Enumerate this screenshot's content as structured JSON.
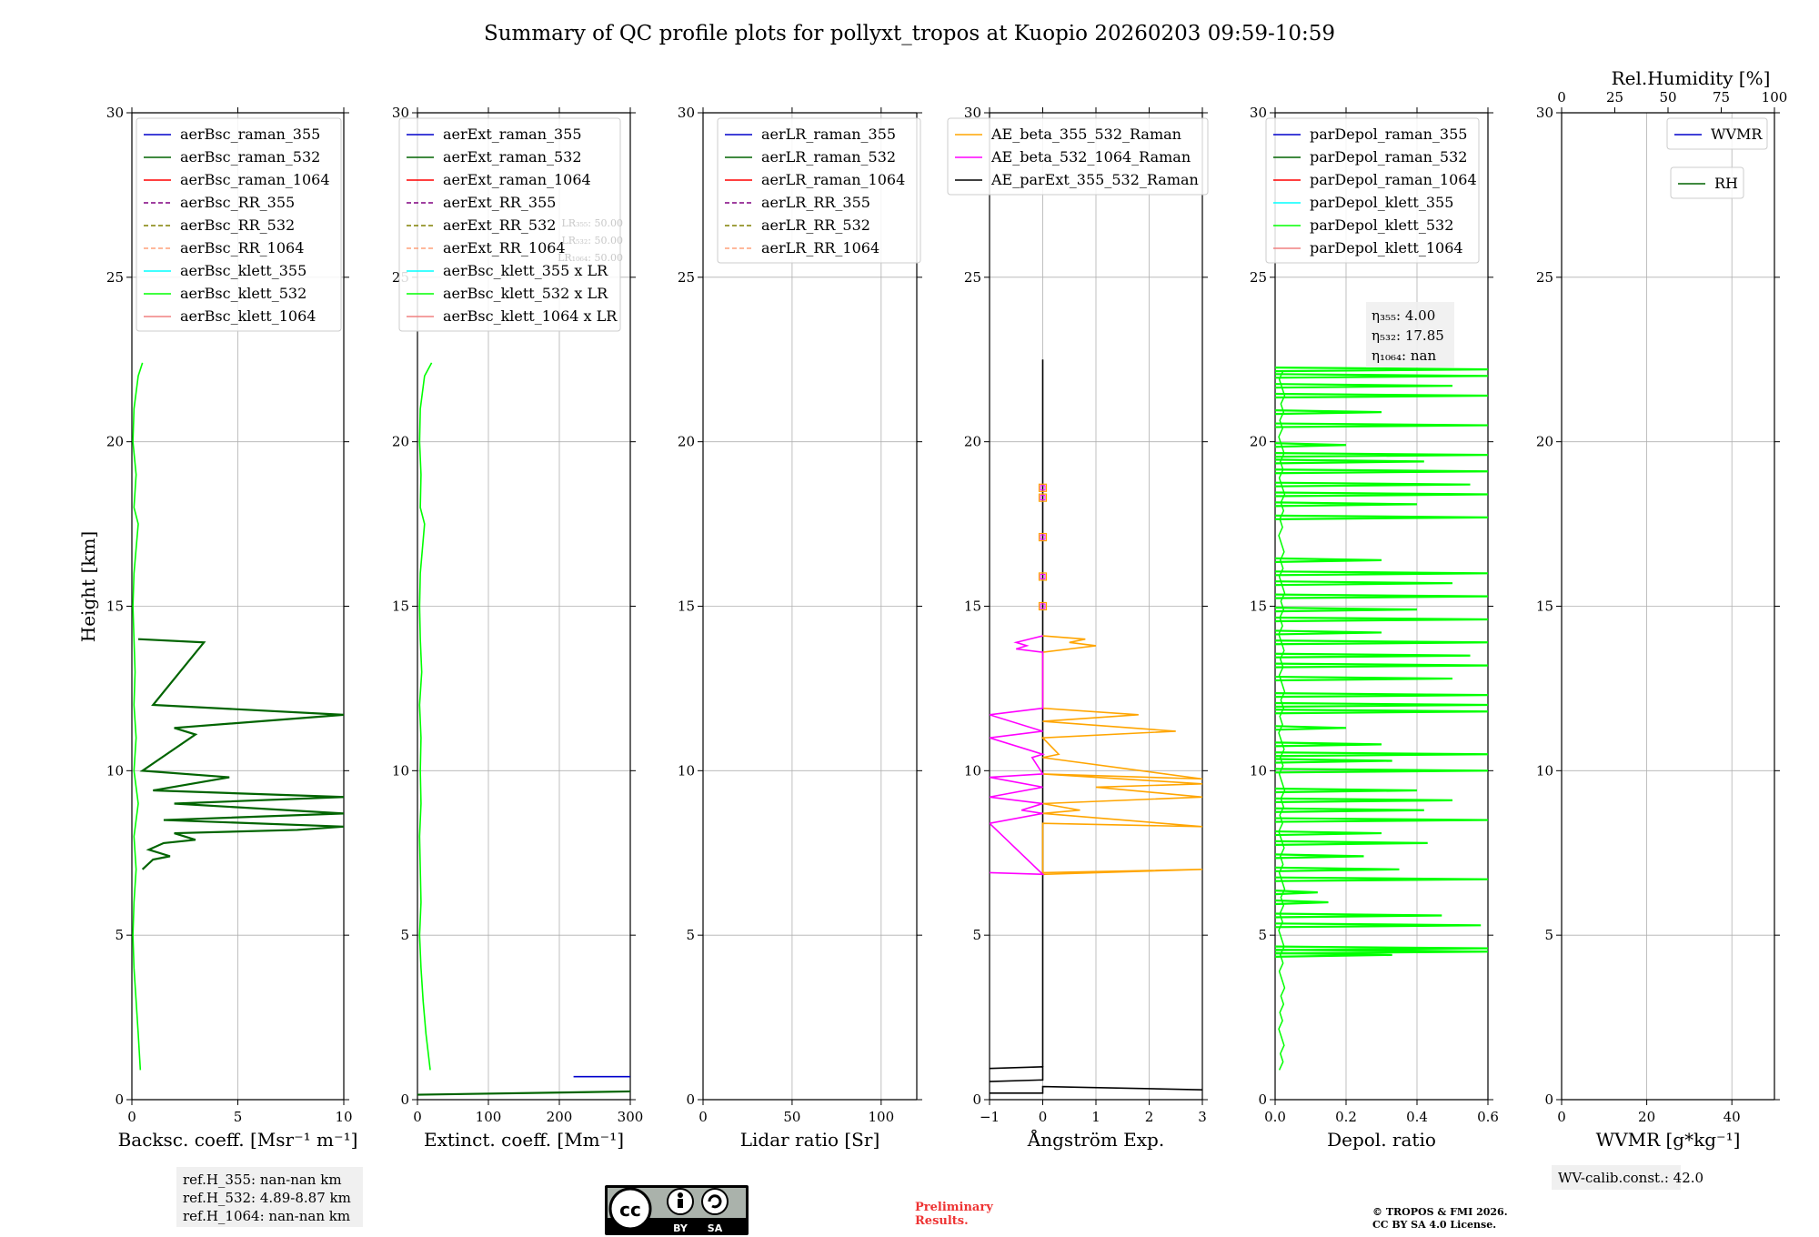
{
  "title": "Summary of QC profile plots for pollyxt_tropos at Kuopio 20260203 09:59-10:59",
  "y_label": "Height [km]",
  "colors": {
    "raman_355": "#0000cc",
    "raman_532": "#006400",
    "raman_1064": "#ff0000",
    "rr_355": "#800080",
    "rr_532": "#808000",
    "rr_1064": "#ffa07a",
    "klett_355": "#00ffff",
    "klett_532": "#00ff00",
    "klett_1064": "#f08080",
    "ae1": "#ffa500",
    "ae2": "#ff00ff",
    "ae3": "#000000",
    "grid": "#b0b0b0"
  },
  "chart_data": [
    {
      "type": "line",
      "id": "bsc",
      "xlabel": "Backsc. coeff. [Msr⁻¹ m⁻¹]",
      "xlim": [
        0,
        10
      ],
      "ylim": [
        0,
        30
      ],
      "xticks": [
        "0",
        "5",
        "10"
      ],
      "yticks": [
        "0",
        "5",
        "10",
        "15",
        "20",
        "25",
        "30"
      ],
      "legend": [
        "aerBsc_raman_355",
        "aerBsc_raman_532",
        "aerBsc_raman_1064",
        "aerBsc_RR_355",
        "aerBsc_RR_532",
        "aerBsc_RR_1064",
        "aerBsc_klett_355",
        "aerBsc_klett_532",
        "aerBsc_klett_1064"
      ],
      "series": [
        {
          "name": "aerBsc_klett_532",
          "points": [
            [
              0.4,
              0.9
            ],
            [
              0.3,
              2
            ],
            [
              0.2,
              3
            ],
            [
              0.1,
              4
            ],
            [
              0.05,
              5
            ],
            [
              0.1,
              6
            ],
            [
              0.2,
              7
            ],
            [
              0.1,
              8
            ],
            [
              0.3,
              9
            ],
            [
              0.1,
              10
            ],
            [
              0.2,
              11
            ],
            [
              0.1,
              12
            ],
            [
              0.15,
              13
            ],
            [
              0.1,
              14
            ],
            [
              0.05,
              15
            ],
            [
              0.1,
              16
            ],
            [
              0.3,
              17.5
            ],
            [
              0.1,
              18
            ],
            [
              0.2,
              19
            ],
            [
              0.05,
              20
            ],
            [
              0.1,
              21
            ],
            [
              0.3,
              22
            ],
            [
              0.5,
              22.4
            ]
          ]
        },
        {
          "name": "aerBsc_raman_532",
          "points": [
            [
              0.5,
              7.0
            ],
            [
              1.0,
              7.3
            ],
            [
              1.8,
              7.4
            ],
            [
              0.8,
              7.6
            ],
            [
              1.5,
              7.8
            ],
            [
              3.0,
              7.9
            ],
            [
              2.0,
              8.1
            ],
            [
              7.8,
              8.2
            ],
            [
              10,
              8.3
            ],
            [
              1.5,
              8.5
            ],
            [
              10,
              8.7
            ],
            [
              2.0,
              9.0
            ],
            [
              10,
              9.2
            ],
            [
              1.0,
              9.4
            ],
            [
              4.6,
              9.8
            ],
            [
              0.5,
              10.0
            ],
            [
              3.0,
              11.1
            ],
            [
              2.0,
              11.3
            ],
            [
              10,
              11.7
            ],
            [
              1.0,
              12.0
            ],
            [
              3.4,
              13.9
            ],
            [
              0.3,
              14.0
            ]
          ]
        }
      ],
      "notes": [
        "ref.H_355: nan-nan km",
        "ref.H_532: 4.89-8.87 km",
        "ref.H_1064: nan-nan km"
      ]
    },
    {
      "type": "line",
      "id": "ext",
      "xlabel": "Extinct. coeff. [Mm⁻¹]",
      "xlim": [
        0,
        300
      ],
      "ylim": [
        0,
        30
      ],
      "xticks": [
        "0",
        "100",
        "200",
        "300"
      ],
      "yticks": [
        "0",
        "5",
        "10",
        "15",
        "20",
        "25",
        "30"
      ],
      "legend": [
        "aerExt_raman_355",
        "aerExt_raman_532",
        "aerExt_raman_1064",
        "aerExt_RR_355",
        "aerExt_RR_532",
        "aerExt_RR_1064",
        "aerBsc_klett_355 x LR",
        "aerBsc_klett_532 x LR",
        "aerBsc_klett_1064 x LR"
      ],
      "series": [
        {
          "name": "aerBsc_klett_532 x LR",
          "points": [
            [
              18,
              0.9
            ],
            [
              12,
              2
            ],
            [
              8,
              3
            ],
            [
              5,
              4
            ],
            [
              3,
              5
            ],
            [
              5,
              6
            ],
            [
              4,
              7
            ],
            [
              3,
              8
            ],
            [
              5,
              9
            ],
            [
              4,
              10
            ],
            [
              5,
              11
            ],
            [
              3,
              12
            ],
            [
              6,
              13
            ],
            [
              4,
              14
            ],
            [
              3,
              15
            ],
            [
              4,
              16
            ],
            [
              10,
              17.5
            ],
            [
              4,
              18
            ],
            [
              5,
              19
            ],
            [
              3,
              20
            ],
            [
              4,
              21
            ],
            [
              10,
              22
            ],
            [
              20,
              22.4
            ]
          ]
        },
        {
          "name": "aerExt_raman_355",
          "points": [
            [
              220,
              0.7
            ],
            [
              300,
              0.7
            ]
          ]
        },
        {
          "name": "aerExt_raman_532",
          "points": [
            [
              0,
              0.15
            ],
            [
              300,
              0.25
            ]
          ]
        }
      ],
      "lr_labels": [
        "LR₃₅₅: 50.00",
        "LR₅₃₂: 50.00",
        "LR₁₀₆₄: 50.00"
      ]
    },
    {
      "type": "line",
      "id": "lr",
      "xlabel": "Lidar ratio [Sr]",
      "xlim": [
        0,
        120
      ],
      "ylim": [
        0,
        30
      ],
      "xticks": [
        "0",
        "50",
        "100"
      ],
      "yticks": [
        "0",
        "5",
        "10",
        "15",
        "20",
        "25",
        "30"
      ],
      "legend": [
        "aerLR_raman_355",
        "aerLR_raman_532",
        "aerLR_raman_1064",
        "aerLR_RR_355",
        "aerLR_RR_532",
        "aerLR_RR_1064"
      ],
      "series": []
    },
    {
      "type": "line",
      "id": "ae",
      "xlabel": "Ångström Exp.",
      "xlim": [
        -1,
        3
      ],
      "ylim": [
        0,
        30
      ],
      "xticks": [
        "−1",
        "0",
        "1",
        "2",
        "3"
      ],
      "yticks": [
        "0",
        "5",
        "10",
        "15",
        "20",
        "25",
        "30"
      ],
      "legend": [
        "AE_beta_355_532_Raman",
        "AE_beta_532_1064_Raman",
        "AE_parExt_355_532_Raman"
      ],
      "series": [
        {
          "name": "AE_parExt_355_532_Raman",
          "points": [
            [
              -1,
              0.2
            ],
            [
              0,
              0.2
            ],
            [
              0,
              0.4
            ],
            [
              3,
              0.3
            ]
          ]
        },
        {
          "name": "AE_parExt_355_532_Raman",
          "points": [
            [
              -1,
              0.55
            ],
            [
              0,
              0.6
            ],
            [
              0,
              1.0
            ],
            [
              -1,
              0.95
            ]
          ]
        },
        {
          "name": "AE_parExt_355_532_Raman",
          "points": [
            [
              0,
              1.0
            ],
            [
              0,
              22.5
            ]
          ]
        },
        {
          "name": "AE_beta_355_532_Raman",
          "points": [
            [
              0,
              6.9
            ],
            [
              3,
              7.0
            ],
            [
              0,
              6.85
            ],
            [
              0,
              8.4
            ],
            [
              3,
              8.3
            ],
            [
              0,
              8.7
            ],
            [
              0.7,
              8.8
            ],
            [
              0,
              9.0
            ],
            [
              3,
              9.2
            ],
            [
              1,
              9.5
            ],
            [
              3,
              9.6
            ],
            [
              0,
              9.9
            ],
            [
              3,
              9.75
            ],
            [
              0,
              10.4
            ],
            [
              0.3,
              10.5
            ],
            [
              0,
              11.0
            ],
            [
              2.5,
              11.2
            ],
            [
              0,
              11.5
            ],
            [
              1.8,
              11.7
            ],
            [
              0,
              11.9
            ],
            [
              0,
              13.6
            ],
            [
              0.5,
              13.7
            ],
            [
              1,
              13.8
            ],
            [
              0.5,
              13.9
            ],
            [
              0.8,
              14.0
            ],
            [
              0,
              14.1
            ]
          ]
        },
        {
          "name": "AE_beta_532_1064_Raman",
          "points": [
            [
              -1,
              6.9
            ],
            [
              0,
              6.85
            ],
            [
              -1,
              8.4
            ],
            [
              0,
              8.7
            ],
            [
              -0.4,
              8.8
            ],
            [
              0,
              9.0
            ],
            [
              -1,
              9.2
            ],
            [
              0,
              9.5
            ],
            [
              -1,
              9.8
            ],
            [
              0,
              9.9
            ],
            [
              -0.2,
              10.4
            ],
            [
              0,
              10.5
            ],
            [
              -1,
              11.0
            ],
            [
              0,
              11.2
            ],
            [
              -1,
              11.7
            ],
            [
              0,
              11.9
            ],
            [
              0,
              13.6
            ],
            [
              -0.5,
              13.7
            ],
            [
              -0.3,
              13.8
            ],
            [
              -0.5,
              13.9
            ],
            [
              0,
              14.1
            ]
          ]
        },
        {
          "name": "AE_beta_355_532_Raman_boxes",
          "points": [
            [
              0,
              15.0
            ],
            [
              0,
              15.9
            ],
            [
              0,
              17.1
            ],
            [
              0,
              18.3
            ],
            [
              0,
              18.6
            ]
          ]
        }
      ]
    },
    {
      "type": "line",
      "id": "depol",
      "xlabel": "Depol. ratio",
      "xlim": [
        0,
        0.6
      ],
      "ylim": [
        0,
        30
      ],
      "xticks": [
        "0.0",
        "0.2",
        "0.4",
        "0.6"
      ],
      "yticks": [
        "0",
        "5",
        "10",
        "15",
        "20",
        "25",
        "30"
      ],
      "legend": [
        "parDepol_raman_355",
        "parDepol_raman_532",
        "parDepol_raman_1064",
        "parDepol_klett_355",
        "parDepol_klett_532",
        "parDepol_klett_1064"
      ],
      "eta_labels": [
        "η₃₅₅: 4.00",
        "η₅₃₂: 17.85",
        "η₁₀₆₄: nan"
      ],
      "spikes": [
        [
          0.33,
          4.4
        ],
        [
          0.6,
          4.5
        ],
        [
          0.6,
          4.6
        ],
        [
          0.58,
          5.3
        ],
        [
          0.47,
          5.6
        ],
        [
          0.15,
          6.0
        ],
        [
          0.12,
          6.3
        ],
        [
          0.6,
          6.7
        ],
        [
          0.35,
          7.0
        ],
        [
          0.25,
          7.4
        ],
        [
          0.43,
          7.8
        ],
        [
          0.3,
          8.1
        ],
        [
          0.6,
          8.5
        ],
        [
          0.42,
          8.8
        ],
        [
          0.5,
          9.1
        ],
        [
          0.4,
          9.4
        ],
        [
          0.6,
          10.0
        ],
        [
          0.33,
          10.3
        ],
        [
          0.6,
          10.5
        ],
        [
          0.3,
          10.8
        ],
        [
          0.2,
          11.3
        ],
        [
          0.6,
          11.8
        ],
        [
          0.6,
          12.0
        ],
        [
          0.6,
          12.3
        ],
        [
          0.5,
          12.8
        ],
        [
          0.6,
          13.2
        ],
        [
          0.55,
          13.5
        ],
        [
          0.6,
          13.9
        ],
        [
          0.3,
          14.2
        ],
        [
          0.6,
          14.6
        ],
        [
          0.4,
          14.9
        ],
        [
          0.6,
          15.3
        ],
        [
          0.5,
          15.7
        ],
        [
          0.6,
          16.0
        ],
        [
          0.3,
          16.4
        ],
        [
          0.6,
          17.7
        ],
        [
          0.4,
          18.1
        ],
        [
          0.6,
          18.4
        ],
        [
          0.55,
          18.7
        ],
        [
          0.6,
          19.1
        ],
        [
          0.42,
          19.4
        ],
        [
          0.6,
          19.6
        ],
        [
          0.2,
          19.9
        ],
        [
          0.6,
          20.5
        ],
        [
          0.3,
          20.9
        ],
        [
          0.6,
          21.4
        ],
        [
          0.5,
          21.7
        ],
        [
          0.6,
          22.0
        ],
        [
          0.6,
          22.2
        ]
      ]
    },
    {
      "type": "line",
      "id": "wv",
      "xlabel": "WVMR [g*kg⁻¹]",
      "xlim": [
        0,
        50
      ],
      "ylim": [
        0,
        30
      ],
      "xticks": [
        "0",
        "20",
        "40"
      ],
      "yticks": [
        "0",
        "5",
        "10",
        "15",
        "20",
        "25",
        "30"
      ],
      "top_label": "Rel.Humidity [%]",
      "top_ticks": [
        "0",
        "25",
        "50",
        "75",
        "100"
      ],
      "legend": [
        "WVMR"
      ],
      "legend2": [
        "RH"
      ],
      "series": []
    }
  ],
  "wv_calib": "WV-calib.const.: 42.0",
  "preliminary": "Preliminary Results.",
  "copyright_1": "© TROPOS & FMI 2026.",
  "copyright_2": "CC BY SA 4.0 License.",
  "cc_badge": {
    "cc": "cc",
    "by": "BY",
    "sa": "SA"
  }
}
